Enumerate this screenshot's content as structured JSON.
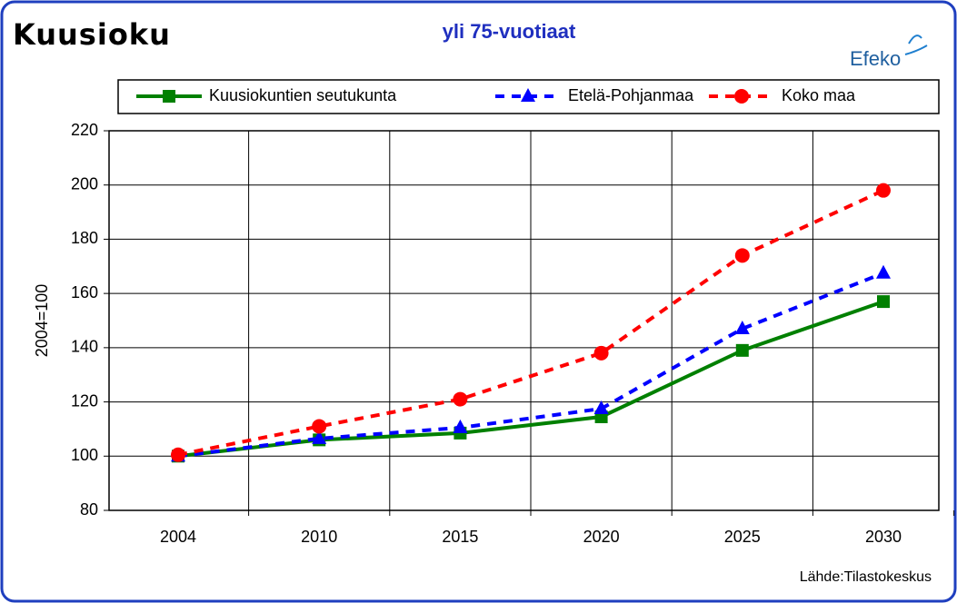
{
  "header": {
    "brand": "Kuusioku",
    "logo": "Efeko",
    "source": "Lähde:Tilastokeskus"
  },
  "chart_data": {
    "type": "line",
    "title": "yli 75-vuotiaat",
    "y_label": "2004=100",
    "categories": [
      "2004",
      "2010",
      "2015",
      "2020",
      "2025",
      "2030"
    ],
    "series": [
      {
        "name": "Kuusiokuntien seutukunta",
        "color": "#008000",
        "marker": "square",
        "dash": "solid",
        "values": [
          100,
          106,
          108.5,
          114.5,
          139,
          157
        ]
      },
      {
        "name": "Etelä-Pohjanmaa",
        "color": "#0000ff",
        "marker": "triangle",
        "dash": "dashed",
        "values": [
          100,
          106.5,
          110.5,
          117.5,
          147,
          167.5
        ]
      },
      {
        "name": "Koko maa",
        "color": "#ff0000",
        "marker": "circle",
        "dash": "dashed",
        "values": [
          100.5,
          111,
          121,
          138,
          174,
          198
        ]
      }
    ],
    "ylim": [
      80,
      220
    ],
    "yticks": [
      80,
      100,
      120,
      140,
      160,
      180,
      200,
      220
    ],
    "grid": true
  }
}
